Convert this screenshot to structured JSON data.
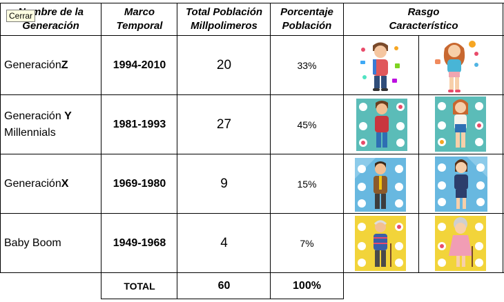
{
  "tooltip": "Cerrar",
  "headers": {
    "name": "Nombre de la Generación",
    "period": "Marco Temporal",
    "total": "Total Población Millpolimeros",
    "percent": "Porcentaje Población",
    "trait": "Rasgo Característico"
  },
  "rows": [
    {
      "name_prefix": "Generación ",
      "name_bold": "Z",
      "name_suffix": "",
      "period": "1994-2010",
      "total": "20",
      "percent": "33%"
    },
    {
      "name_prefix": "Generación ",
      "name_bold": "Y",
      "name_suffix": "Millennials",
      "period": "1981-1993",
      "total": "27",
      "percent": "45%"
    },
    {
      "name_prefix": "Generación ",
      "name_bold": "X",
      "name_suffix": "",
      "period": "1969-1980",
      "total": "9",
      "percent": "15%"
    },
    {
      "name_prefix": "Baby Boom",
      "name_bold": "",
      "name_suffix": "",
      "period": "1949-1968",
      "total": "4",
      "percent": "7%"
    }
  ],
  "totals": {
    "label": "TOTAL",
    "total": "60",
    "percent": "100%"
  },
  "colors": {
    "teal": "#5bbcb8",
    "blue": "#68b8e0",
    "yellow": "#f2d43a",
    "text": "#000000"
  }
}
